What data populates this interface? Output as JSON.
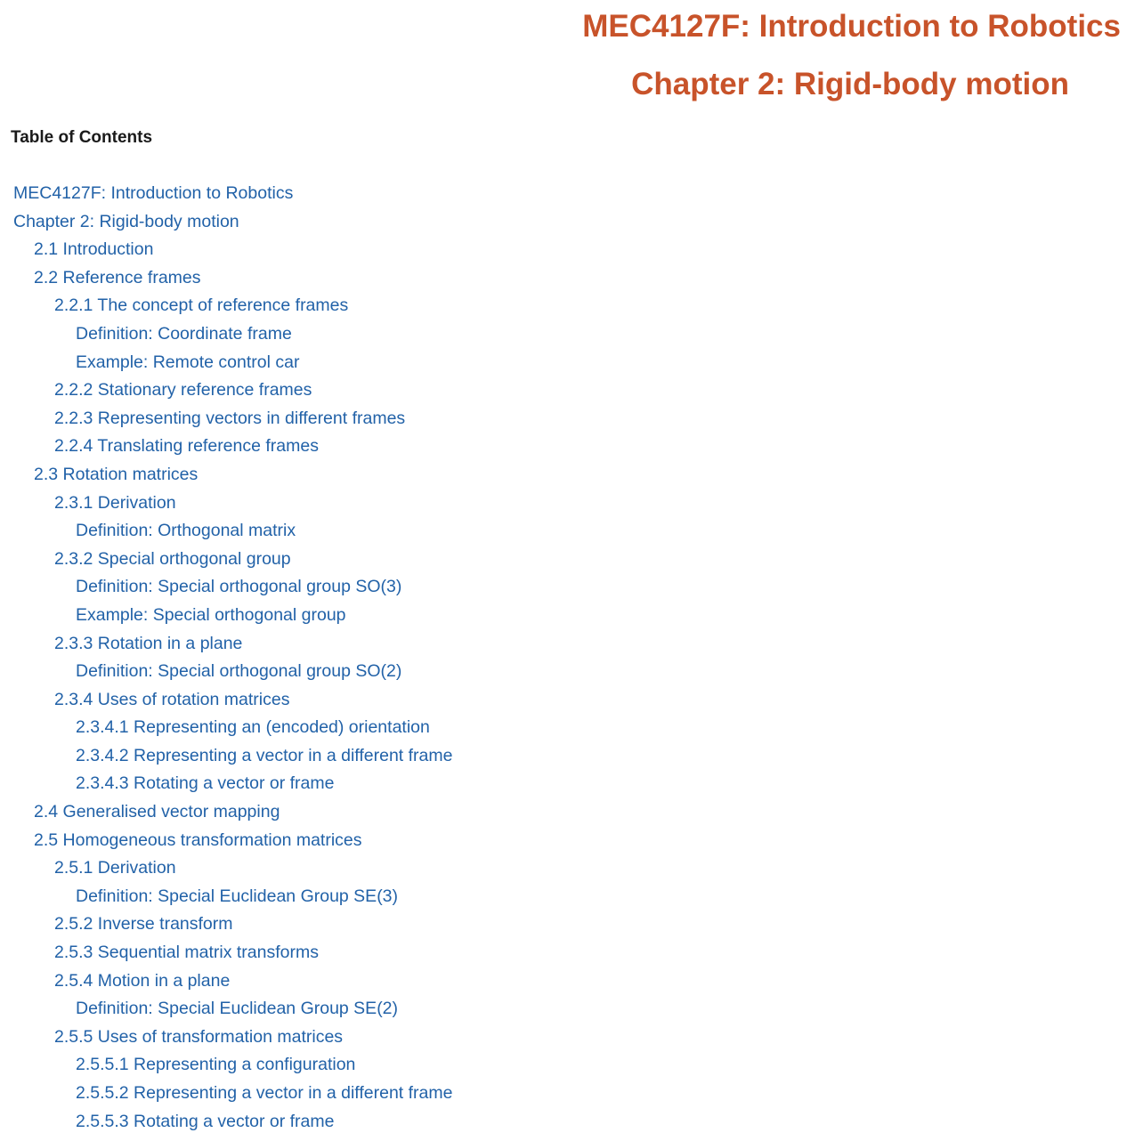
{
  "header": {
    "course_title": "MEC4127F: Introduction to Robotics",
    "chapter_title": "Chapter 2: Rigid-body motion"
  },
  "toc": {
    "heading": "Table of Contents",
    "items": [
      {
        "label": "MEC4127F: Introduction to Robotics",
        "level": 0
      },
      {
        "label": "Chapter 2: Rigid-body motion",
        "level": 0
      },
      {
        "label": "2.1 Introduction",
        "level": 1
      },
      {
        "label": "2.2 Reference frames",
        "level": 1
      },
      {
        "label": "2.2.1 The concept of reference frames",
        "level": 2
      },
      {
        "label": "Definition: Coordinate frame",
        "level": 3
      },
      {
        "label": "Example: Remote control car",
        "level": 3
      },
      {
        "label": "2.2.2 Stationary reference frames",
        "level": 2
      },
      {
        "label": "2.2.3 Representing vectors in different frames",
        "level": 2
      },
      {
        "label": "2.2.4 Translating reference frames",
        "level": 2
      },
      {
        "label": "2.3 Rotation matrices",
        "level": 1
      },
      {
        "label": "2.3.1 Derivation",
        "level": 2
      },
      {
        "label": "Definition: Orthogonal matrix",
        "level": 3
      },
      {
        "label": "2.3.2 Special orthogonal group",
        "level": 2
      },
      {
        "label": "Definition: Special orthogonal group SO(3)",
        "level": 3
      },
      {
        "label": "Example: Special orthogonal group",
        "level": 3
      },
      {
        "label": "2.3.3 Rotation in a plane",
        "level": 2
      },
      {
        "label": "Definition: Special orthogonal group SO(2)",
        "level": 3
      },
      {
        "label": "2.3.4 Uses of rotation matrices",
        "level": 2
      },
      {
        "label": "2.3.4.1 Representing an (encoded) orientation",
        "level": 3
      },
      {
        "label": "2.3.4.2 Representing a vector in a different frame",
        "level": 3
      },
      {
        "label": "2.3.4.3 Rotating a vector or frame",
        "level": 3
      },
      {
        "label": "2.4 Generalised vector mapping",
        "level": 1
      },
      {
        "label": "2.5 Homogeneous transformation matrices",
        "level": 1
      },
      {
        "label": "2.5.1 Derivation",
        "level": 2
      },
      {
        "label": "Definition: Special Euclidean Group SE(3)",
        "level": 3
      },
      {
        "label": "2.5.2 Inverse transform",
        "level": 2
      },
      {
        "label": "2.5.3 Sequential matrix transforms",
        "level": 2
      },
      {
        "label": "2.5.4 Motion in a plane",
        "level": 2
      },
      {
        "label": "Definition: Special Euclidean Group SE(2)",
        "level": 3
      },
      {
        "label": "2.5.5 Uses of transformation matrices",
        "level": 2
      },
      {
        "label": "2.5.5.1 Representing a configuration",
        "level": 3
      },
      {
        "label": "2.5.5.2 Representing a vector in a different frame",
        "level": 3
      },
      {
        "label": "2.5.5.3 Rotating a vector or frame",
        "level": 3
      }
    ]
  }
}
